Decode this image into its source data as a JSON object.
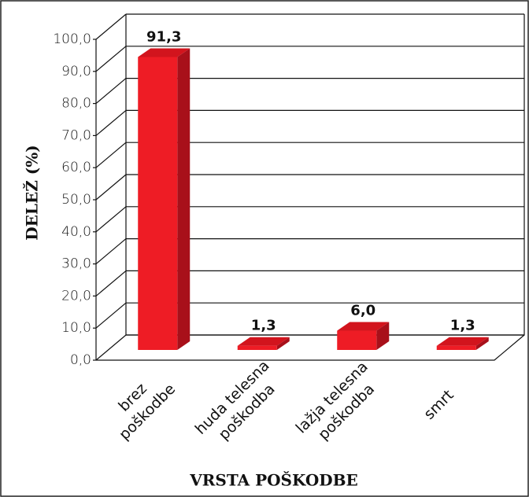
{
  "chart_data": {
    "type": "bar3d",
    "y_label": "DELEŽ (%)",
    "x_label": "VRSTA POŠKODBE",
    "categories": [
      [
        "brez",
        "poškodbe"
      ],
      [
        "huda telesna",
        "poškodba"
      ],
      [
        "lažja telesna",
        "poškodba"
      ],
      [
        "smrt"
      ]
    ],
    "values": [
      91.3,
      1.3,
      6.0,
      1.3
    ],
    "value_labels": [
      "91,3",
      "1,3",
      "6,0",
      "1,3"
    ],
    "color": "#ee1c25",
    "ylim": [
      0,
      100
    ],
    "yticks": [
      {
        "value": 0,
        "label": "0,0"
      },
      {
        "value": 10,
        "label": "10,0"
      },
      {
        "value": 20,
        "label": "20,0"
      },
      {
        "value": 30,
        "label": "30,0"
      },
      {
        "value": 40,
        "label": "40,0"
      },
      {
        "value": 50,
        "label": "50,0"
      },
      {
        "value": 60,
        "label": "60,0"
      },
      {
        "value": 70,
        "label": "70,0"
      },
      {
        "value": 80,
        "label": "80,0"
      },
      {
        "value": 90,
        "label": "90,0"
      },
      {
        "value": 100,
        "label": "100,0"
      }
    ],
    "grid": true
  }
}
